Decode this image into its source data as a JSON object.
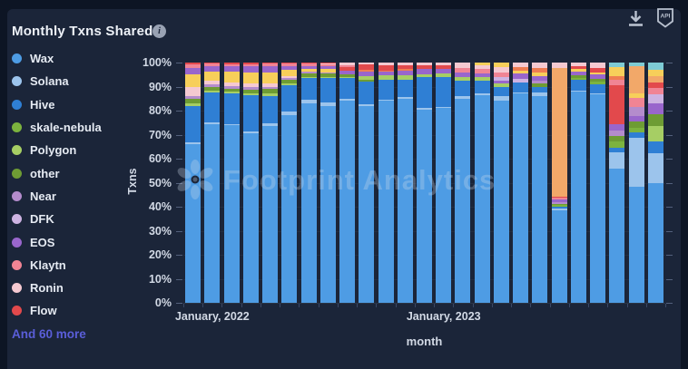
{
  "header": {
    "title": "Monthly Txns Shared",
    "api_label": "API"
  },
  "legend": {
    "more_label": "And 60 more"
  },
  "watermark": {
    "text": "Footprint Analytics"
  },
  "chart_data": {
    "type": "bar",
    "stacked": true,
    "percent": true,
    "title": "Monthly Txns Shared",
    "xlabel": "month",
    "ylabel": "Txns",
    "ylim": [
      0,
      100
    ],
    "ytick_labels": [
      "100%",
      "90%",
      "80%",
      "70%",
      "60%",
      "50%",
      "40%",
      "30%",
      "20%",
      "10%",
      "0%"
    ],
    "xticks": [
      {
        "label": "January, 2022",
        "bar_index": 1
      },
      {
        "label": "January, 2023",
        "bar_index": 13
      }
    ],
    "legend_position": "left",
    "grid": false,
    "series": [
      {
        "key": "wax",
        "name": "Wax",
        "color": "#4E9CE4",
        "in_legend": true
      },
      {
        "key": "solana",
        "name": "Solana",
        "color": "#9CC4EC",
        "in_legend": true
      },
      {
        "key": "hive",
        "name": "Hive",
        "color": "#2F7FD4",
        "in_legend": true
      },
      {
        "key": "skale",
        "name": "skale-nebula",
        "color": "#7CB33E",
        "in_legend": true
      },
      {
        "key": "polygon",
        "name": "Polygon",
        "color": "#A6CE64",
        "in_legend": true
      },
      {
        "key": "other",
        "name": "other",
        "color": "#6E9C34",
        "in_legend": true
      },
      {
        "key": "near",
        "name": "Near",
        "color": "#B48CCC",
        "in_legend": true
      },
      {
        "key": "dfk",
        "name": "DFK",
        "color": "#CDB3E2",
        "in_legend": true
      },
      {
        "key": "eos",
        "name": "EOS",
        "color": "#9966CC",
        "in_legend": true
      },
      {
        "key": "klaytn",
        "name": "Klaytn",
        "color": "#F08494",
        "in_legend": true
      },
      {
        "key": "ronin",
        "name": "Ronin",
        "color": "#F5C9D1",
        "in_legend": true
      },
      {
        "key": "flow",
        "name": "Flow",
        "color": "#E2494C",
        "in_legend": true
      },
      {
        "key": "more_yellow",
        "name": null,
        "color": "#F7CF5A",
        "in_legend": false
      },
      {
        "key": "more_orange",
        "name": null,
        "color": "#F2A869",
        "in_legend": false
      },
      {
        "key": "more_orangered",
        "name": null,
        "color": "#EF7D52",
        "in_legend": false
      },
      {
        "key": "more_teal",
        "name": null,
        "color": "#7ECBD4",
        "in_legend": false
      }
    ],
    "bars": [
      {
        "month": "2021-12",
        "segments": [
          [
            "wax",
            66
          ],
          [
            "solana",
            0.8
          ],
          [
            "hive",
            15
          ],
          [
            "polygon",
            1.2
          ],
          [
            "other",
            2.0
          ],
          [
            "near",
            1.2
          ],
          [
            "ronin",
            3.8
          ],
          [
            "more_yellow",
            5.0
          ],
          [
            "eos",
            2.8
          ],
          [
            "klaytn",
            1.5
          ],
          [
            "flow",
            0.7
          ]
        ]
      },
      {
        "month": "2022-01",
        "segments": [
          [
            "wax",
            74.5
          ],
          [
            "solana",
            0.5
          ],
          [
            "hive",
            12.5
          ],
          [
            "polygon",
            0.8
          ],
          [
            "other",
            1.5
          ],
          [
            "near",
            1.0
          ],
          [
            "ronin",
            1.5
          ],
          [
            "more_yellow",
            4.0
          ],
          [
            "eos",
            2.3
          ],
          [
            "klaytn",
            1.0
          ],
          [
            "flow",
            0.4
          ]
        ]
      },
      {
        "month": "2022-02",
        "segments": [
          [
            "wax",
            74
          ],
          [
            "solana",
            0.5
          ],
          [
            "hive",
            12.5
          ],
          [
            "polygon",
            0.8
          ],
          [
            "other",
            1.4
          ],
          [
            "near",
            1.0
          ],
          [
            "ronin",
            1.5
          ],
          [
            "more_yellow",
            4.4
          ],
          [
            "eos",
            2.3
          ],
          [
            "klaytn",
            1.0
          ],
          [
            "flow",
            0.6
          ]
        ]
      },
      {
        "month": "2022-03",
        "segments": [
          [
            "wax",
            70.5
          ],
          [
            "solana",
            1.0
          ],
          [
            "hive",
            15
          ],
          [
            "polygon",
            0.8
          ],
          [
            "other",
            1.5
          ],
          [
            "near",
            1.1
          ],
          [
            "ronin",
            1.5
          ],
          [
            "more_yellow",
            4.6
          ],
          [
            "eos",
            2.4
          ],
          [
            "klaytn",
            1.0
          ],
          [
            "flow",
            0.6
          ]
        ]
      },
      {
        "month": "2022-04",
        "segments": [
          [
            "wax",
            73.5
          ],
          [
            "solana",
            1.2
          ],
          [
            "hive",
            11.5
          ],
          [
            "polygon",
            1.0
          ],
          [
            "other",
            1.8
          ],
          [
            "near",
            1.0
          ],
          [
            "ronin",
            1.4
          ],
          [
            "more_yellow",
            4.4
          ],
          [
            "eos",
            2.6
          ],
          [
            "klaytn",
            1.2
          ],
          [
            "flow",
            0.4
          ]
        ]
      },
      {
        "month": "2022-05",
        "segments": [
          [
            "wax",
            78
          ],
          [
            "solana",
            1.5
          ],
          [
            "hive",
            11
          ],
          [
            "polygon",
            0.8
          ],
          [
            "other",
            1.4
          ],
          [
            "near",
            0.8
          ],
          [
            "ronin",
            1.0
          ],
          [
            "more_yellow",
            2.4
          ],
          [
            "eos",
            1.8
          ],
          [
            "klaytn",
            1.0
          ],
          [
            "flow",
            0.3
          ]
        ]
      },
      {
        "month": "2022-06",
        "segments": [
          [
            "wax",
            83
          ],
          [
            "solana",
            1.5
          ],
          [
            "hive",
            9
          ],
          [
            "polygon",
            0.6
          ],
          [
            "other",
            1.4
          ],
          [
            "near",
            0.6
          ],
          [
            "more_yellow",
            1.4
          ],
          [
            "eos",
            1.2
          ],
          [
            "klaytn",
            0.8
          ],
          [
            "flow",
            0.5
          ]
        ]
      },
      {
        "month": "2022-07",
        "segments": [
          [
            "wax",
            82
          ],
          [
            "solana",
            1.5
          ],
          [
            "hive",
            10
          ],
          [
            "polygon",
            0.6
          ],
          [
            "other",
            1.2
          ],
          [
            "near",
            0.5
          ],
          [
            "more_yellow",
            1.6
          ],
          [
            "eos",
            1.0
          ],
          [
            "klaytn",
            0.8
          ],
          [
            "ronin",
            0.4
          ],
          [
            "flow",
            0.4
          ]
        ]
      },
      {
        "month": "2022-08",
        "segments": [
          [
            "wax",
            84
          ],
          [
            "solana",
            1.0
          ],
          [
            "hive",
            8.5
          ],
          [
            "polygon",
            0.6
          ],
          [
            "other",
            1.2
          ],
          [
            "eos",
            1.4
          ],
          [
            "flow",
            1.4
          ],
          [
            "klaytn",
            0.9
          ],
          [
            "ronin",
            1.0
          ]
        ]
      },
      {
        "month": "2022-09",
        "segments": [
          [
            "wax",
            82
          ],
          [
            "solana",
            0.8
          ],
          [
            "hive",
            9.4
          ],
          [
            "other",
            0.6
          ],
          [
            "polygon",
            1.6
          ],
          [
            "eos",
            2.0
          ],
          [
            "more_orangered",
            0.5
          ],
          [
            "flow",
            2.5
          ],
          [
            "ronin",
            0.6
          ]
        ]
      },
      {
        "month": "2022-10",
        "segments": [
          [
            "wax",
            84
          ],
          [
            "solana",
            0.6
          ],
          [
            "hive",
            8.4
          ],
          [
            "polygon",
            1.6
          ],
          [
            "eos",
            1.8
          ],
          [
            "more_orangered",
            0.4
          ],
          [
            "flow",
            2.2
          ],
          [
            "ronin",
            1.0
          ]
        ]
      },
      {
        "month": "2022-11",
        "segments": [
          [
            "wax",
            85
          ],
          [
            "solana",
            0.6
          ],
          [
            "hive",
            7.4
          ],
          [
            "polygon",
            1.8
          ],
          [
            "eos",
            2.0
          ],
          [
            "more_orangered",
            0.4
          ],
          [
            "flow",
            1.8
          ],
          [
            "ronin",
            1.0
          ]
        ]
      },
      {
        "month": "2022-12",
        "segments": [
          [
            "wax",
            80.5
          ],
          [
            "solana",
            0.5
          ],
          [
            "hive",
            12.8
          ],
          [
            "polygon",
            1.5
          ],
          [
            "eos",
            2.0
          ],
          [
            "flow",
            1.7
          ],
          [
            "ronin",
            1.0
          ]
        ]
      },
      {
        "month": "2023-01",
        "segments": [
          [
            "wax",
            81
          ],
          [
            "solana",
            0.6
          ],
          [
            "hive",
            12.4
          ],
          [
            "polygon",
            1.5
          ],
          [
            "eos",
            1.8
          ],
          [
            "flow",
            1.6
          ],
          [
            "ronin",
            1.1
          ]
        ]
      },
      {
        "month": "2023-02",
        "segments": [
          [
            "wax",
            85
          ],
          [
            "solana",
            1.0
          ],
          [
            "hive",
            6.4
          ],
          [
            "polygon",
            1.5
          ],
          [
            "eos",
            1.9
          ],
          [
            "klaytn",
            1.9
          ],
          [
            "ronin",
            2.3
          ]
        ]
      },
      {
        "month": "2023-03",
        "segments": [
          [
            "wax",
            86.5
          ],
          [
            "solana",
            0.5
          ],
          [
            "hive",
            5.3
          ],
          [
            "polygon",
            1.5
          ],
          [
            "eos",
            1.6
          ],
          [
            "klaytn",
            1.9
          ],
          [
            "ronin",
            1.5
          ],
          [
            "more_yellow",
            1.2
          ]
        ]
      },
      {
        "month": "2023-04",
        "segments": [
          [
            "wax",
            84
          ],
          [
            "solana",
            1.9
          ],
          [
            "hive",
            3.8
          ],
          [
            "polygon",
            1.5
          ],
          [
            "eos",
            1.1
          ],
          [
            "dfk",
            1.5
          ],
          [
            "klaytn",
            1.9
          ],
          [
            "ronin",
            2.4
          ],
          [
            "more_yellow",
            1.9
          ]
        ]
      },
      {
        "month": "2023-05",
        "segments": [
          [
            "wax",
            87.3
          ],
          [
            "solana",
            0.4
          ],
          [
            "hive",
            4.0
          ],
          [
            "dfk",
            1.5
          ],
          [
            "eos",
            2.3
          ],
          [
            "more_yellow",
            1.1
          ],
          [
            "more_orangered",
            1.5
          ],
          [
            "ronin",
            1.9
          ]
        ]
      },
      {
        "month": "2023-06",
        "segments": [
          [
            "wax",
            86
          ],
          [
            "solana",
            1.7
          ],
          [
            "hive",
            2.3
          ],
          [
            "other",
            1.5
          ],
          [
            "near",
            1.1
          ],
          [
            "eos",
            1.9
          ],
          [
            "more_yellow",
            1.5
          ],
          [
            "more_orangered",
            1.9
          ],
          [
            "ronin",
            2.1
          ]
        ]
      },
      {
        "month": "2023-07",
        "segments": [
          [
            "wax",
            38.5
          ],
          [
            "solana",
            0.8
          ],
          [
            "hive",
            0.7
          ],
          [
            "skale",
            0.8
          ],
          [
            "other",
            0.5
          ],
          [
            "near",
            0.8
          ],
          [
            "eos",
            1.0
          ],
          [
            "klaytn",
            0.7
          ],
          [
            "flow",
            0.5
          ],
          [
            "more_orange",
            53.5
          ],
          [
            "ronin",
            2.2
          ]
        ]
      },
      {
        "month": "2023-08",
        "segments": [
          [
            "wax",
            88
          ],
          [
            "solana",
            0.5
          ],
          [
            "hive",
            4.2
          ],
          [
            "skale",
            0.8
          ],
          [
            "other",
            1.1
          ],
          [
            "eos",
            1.7
          ],
          [
            "more_yellow",
            1.1
          ],
          [
            "flow",
            1.3
          ],
          [
            "ronin",
            1.3
          ]
        ]
      },
      {
        "month": "2023-09",
        "segments": [
          [
            "wax",
            86.8
          ],
          [
            "solana",
            0.4
          ],
          [
            "hive",
            3.8
          ],
          [
            "skale",
            1.1
          ],
          [
            "other",
            1.1
          ],
          [
            "eos",
            1.9
          ],
          [
            "more_yellow",
            0.8
          ],
          [
            "flow",
            1.8
          ],
          [
            "ronin",
            2.3
          ]
        ]
      },
      {
        "month": "2023-10",
        "segments": [
          [
            "wax",
            56
          ],
          [
            "solana",
            6.8
          ],
          [
            "hive",
            1.9
          ],
          [
            "skale",
            2.3
          ],
          [
            "other",
            2.6
          ],
          [
            "near",
            2.3
          ],
          [
            "eos",
            2.3
          ],
          [
            "flow",
            16.2
          ],
          [
            "klaytn",
            2.3
          ],
          [
            "more_orangered",
            1.5
          ],
          [
            "more_yellow",
            3.8
          ],
          [
            "more_teal",
            2.0
          ]
        ]
      },
      {
        "month": "2023-11",
        "segments": [
          [
            "wax",
            48.3
          ],
          [
            "solana",
            20.4
          ],
          [
            "hive",
            2.3
          ],
          [
            "skale",
            1.9
          ],
          [
            "other",
            2.6
          ],
          [
            "eos",
            2.3
          ],
          [
            "near",
            3.8
          ],
          [
            "klaytn",
            3.8
          ],
          [
            "more_yellow",
            1.9
          ],
          [
            "more_orange",
            11.3
          ],
          [
            "more_teal",
            1.4
          ]
        ]
      },
      {
        "month": "2023-12",
        "segments": [
          [
            "wax",
            49.8
          ],
          [
            "solana",
            12.5
          ],
          [
            "hive",
            4.9
          ],
          [
            "polygon",
            6.4
          ],
          [
            "other",
            4.9
          ],
          [
            "eos",
            4.5
          ],
          [
            "dfk",
            3.8
          ],
          [
            "klaytn",
            2.6
          ],
          [
            "flow",
            2.3
          ],
          [
            "more_orange",
            2.6
          ],
          [
            "more_yellow",
            2.6
          ],
          [
            "more_teal",
            3.1
          ]
        ]
      }
    ]
  }
}
